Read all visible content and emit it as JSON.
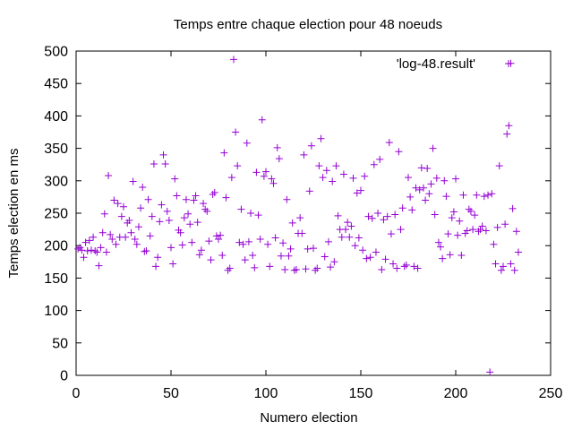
{
  "colors": {
    "series": "#9400d3",
    "axis": "#000000",
    "background": "#ffffff"
  },
  "chart_data": {
    "type": "scatter",
    "title": "Temps entre chaque election pour 48 noeuds",
    "xlabel": "Numero election",
    "ylabel": "Temps election en ms",
    "xlim": [
      0,
      250
    ],
    "ylim": [
      0,
      500
    ],
    "xticks": [
      "0",
      "50",
      "100",
      "150",
      "200",
      "250"
    ],
    "yticks": [
      "0",
      "50",
      "100",
      "150",
      "200",
      "250",
      "300",
      "350",
      "400",
      "450",
      "500"
    ],
    "grid": false,
    "legend_position": "top-right",
    "marker": "plus",
    "series": [
      {
        "name": "'log-48.result'",
        "color": "#9400d3",
        "points": [
          [
            1,
            195
          ],
          [
            2,
            197
          ],
          [
            3,
            193
          ],
          [
            4,
            182
          ],
          [
            5,
            205
          ],
          [
            6,
            192
          ],
          [
            7,
            208
          ],
          [
            8,
            193
          ],
          [
            9,
            213
          ],
          [
            10,
            192
          ],
          [
            11,
            190
          ],
          [
            12,
            169
          ],
          [
            13,
            197
          ],
          [
            14,
            220
          ],
          [
            15,
            249
          ],
          [
            16,
            190
          ],
          [
            17,
            308
          ],
          [
            18,
            217
          ],
          [
            19,
            210
          ],
          [
            20,
            270
          ],
          [
            21,
            202
          ],
          [
            22,
            265
          ],
          [
            23,
            213
          ],
          [
            24,
            245
          ],
          [
            25,
            260
          ],
          [
            26,
            213
          ],
          [
            27,
            235
          ],
          [
            28,
            239
          ],
          [
            29,
            220
          ],
          [
            30,
            299
          ],
          [
            31,
            210
          ],
          [
            32,
            202
          ],
          [
            33,
            229
          ],
          [
            34,
            258
          ],
          [
            35,
            290
          ],
          [
            36,
            191
          ],
          [
            37,
            192
          ],
          [
            38,
            271
          ],
          [
            39,
            215
          ],
          [
            40,
            245
          ],
          [
            41,
            326
          ],
          [
            42,
            168
          ],
          [
            43,
            182
          ],
          [
            44,
            237
          ],
          [
            45,
            263
          ],
          [
            46,
            340
          ],
          [
            47,
            326
          ],
          [
            48,
            253
          ],
          [
            49,
            239
          ],
          [
            50,
            197
          ],
          [
            51,
            172
          ],
          [
            52,
            303
          ],
          [
            53,
            277
          ],
          [
            54,
            224
          ],
          [
            55,
            220
          ],
          [
            56,
            201
          ],
          [
            57,
            243
          ],
          [
            58,
            271
          ],
          [
            59,
            249
          ],
          [
            60,
            233
          ],
          [
            61,
            205
          ],
          [
            62,
            270
          ],
          [
            63,
            277
          ],
          [
            64,
            236
          ],
          [
            65,
            186
          ],
          [
            66,
            193
          ],
          [
            67,
            265
          ],
          [
            68,
            256
          ],
          [
            69,
            253
          ],
          [
            70,
            207
          ],
          [
            71,
            178
          ],
          [
            72,
            279
          ],
          [
            73,
            282
          ],
          [
            74,
            215
          ],
          [
            75,
            210
          ],
          [
            76,
            216
          ],
          [
            77,
            185
          ],
          [
            78,
            343
          ],
          [
            79,
            274
          ],
          [
            80,
            162
          ],
          [
            81,
            165
          ],
          [
            82,
            305
          ],
          [
            83,
            487
          ],
          [
            84,
            375
          ],
          [
            85,
            323
          ],
          [
            86,
            205
          ],
          [
            87,
            256
          ],
          [
            88,
            202
          ],
          [
            89,
            178
          ],
          [
            90,
            358
          ],
          [
            91,
            206
          ],
          [
            92,
            250
          ],
          [
            93,
            185
          ],
          [
            94,
            166
          ],
          [
            95,
            313
          ],
          [
            96,
            247
          ],
          [
            97,
            210
          ],
          [
            98,
            394
          ],
          [
            99,
            307
          ],
          [
            100,
            314
          ],
          [
            101,
            202
          ],
          [
            102,
            168
          ],
          [
            103,
            303
          ],
          [
            104,
            296
          ],
          [
            105,
            212
          ],
          [
            106,
            351
          ],
          [
            107,
            334
          ],
          [
            108,
            184
          ],
          [
            109,
            204
          ],
          [
            110,
            163
          ],
          [
            111,
            271
          ],
          [
            112,
            184
          ],
          [
            113,
            195
          ],
          [
            114,
            235
          ],
          [
            115,
            162
          ],
          [
            116,
            163
          ],
          [
            117,
            219
          ],
          [
            118,
            243
          ],
          [
            119,
            219
          ],
          [
            120,
            340
          ],
          [
            121,
            164
          ],
          [
            122,
            195
          ],
          [
            123,
            284
          ],
          [
            124,
            354
          ],
          [
            125,
            196
          ],
          [
            126,
            162
          ],
          [
            127,
            165
          ],
          [
            128,
            323
          ],
          [
            129,
            365
          ],
          [
            130,
            305
          ],
          [
            131,
            183
          ],
          [
            132,
            316
          ],
          [
            133,
            206
          ],
          [
            134,
            167
          ],
          [
            135,
            299
          ],
          [
            136,
            175
          ],
          [
            137,
            323
          ],
          [
            138,
            246
          ],
          [
            139,
            225
          ],
          [
            140,
            213
          ],
          [
            141,
            310
          ],
          [
            142,
            225
          ],
          [
            143,
            236
          ],
          [
            144,
            213
          ],
          [
            145,
            230
          ],
          [
            146,
            304
          ],
          [
            147,
            200
          ],
          [
            148,
            281
          ],
          [
            149,
            212
          ],
          [
            150,
            285
          ],
          [
            151,
            193
          ],
          [
            152,
            307
          ],
          [
            153,
            180
          ],
          [
            154,
            245
          ],
          [
            155,
            182
          ],
          [
            156,
            242
          ],
          [
            157,
            325
          ],
          [
            158,
            190
          ],
          [
            159,
            250
          ],
          [
            160,
            333
          ],
          [
            161,
            163
          ],
          [
            162,
            240
          ],
          [
            163,
            179
          ],
          [
            164,
            245
          ],
          [
            165,
            359
          ],
          [
            166,
            218
          ],
          [
            167,
            172
          ],
          [
            168,
            248
          ],
          [
            169,
            165
          ],
          [
            170,
            345
          ],
          [
            171,
            225
          ],
          [
            172,
            258
          ],
          [
            173,
            168
          ],
          [
            174,
            170
          ],
          [
            175,
            305
          ],
          [
            176,
            275
          ],
          [
            177,
            255
          ],
          [
            178,
            168
          ],
          [
            179,
            289
          ],
          [
            180,
            165
          ],
          [
            181,
            286
          ],
          [
            182,
            320
          ],
          [
            183,
            289
          ],
          [
            184,
            270
          ],
          [
            185,
            319
          ],
          [
            186,
            280
          ],
          [
            187,
            295
          ],
          [
            188,
            350
          ],
          [
            189,
            248
          ],
          [
            190,
            304
          ],
          [
            191,
            205
          ],
          [
            192,
            198
          ],
          [
            193,
            180
          ],
          [
            194,
            300
          ],
          [
            195,
            276
          ],
          [
            196,
            218
          ],
          [
            197,
            186
          ],
          [
            198,
            243
          ],
          [
            199,
            252
          ],
          [
            200,
            303
          ],
          [
            201,
            216
          ],
          [
            202,
            238
          ],
          [
            203,
            185
          ],
          [
            204,
            278
          ],
          [
            205,
            219
          ],
          [
            206,
            223
          ],
          [
            207,
            256
          ],
          [
            208,
            253
          ],
          [
            209,
            225
          ],
          [
            210,
            247
          ],
          [
            211,
            278
          ],
          [
            212,
            222
          ],
          [
            213,
            225
          ],
          [
            214,
            230
          ],
          [
            215,
            276
          ],
          [
            216,
            223
          ],
          [
            217,
            278
          ],
          [
            218,
            5
          ],
          [
            219,
            280
          ],
          [
            220,
            202
          ],
          [
            221,
            172
          ],
          [
            222,
            228
          ],
          [
            223,
            323
          ],
          [
            224,
            162
          ],
          [
            225,
            168
          ],
          [
            226,
            233
          ],
          [
            227,
            372
          ],
          [
            228,
            385
          ],
          [
            229,
            172
          ],
          [
            230,
            257
          ],
          [
            231,
            162
          ],
          [
            232,
            222
          ],
          [
            233,
            190
          ],
          [
            229,
            481
          ]
        ]
      }
    ]
  }
}
